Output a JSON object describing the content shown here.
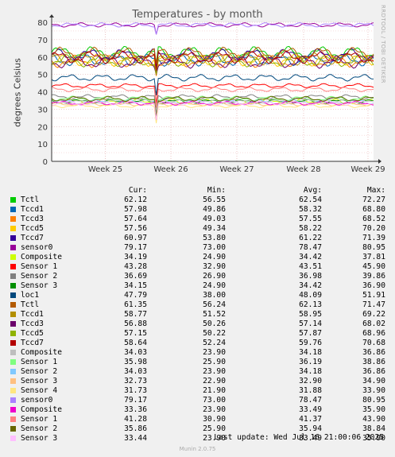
{
  "chart_data": {
    "type": "line",
    "title": "Temperatures - by month",
    "ylabel": "degrees Celsius",
    "side_text": "RRDTOOL / TOBI OETIKER",
    "ylim": [
      0,
      80
    ],
    "y_ticks": [
      0,
      10,
      20,
      30,
      40,
      50,
      60,
      70,
      80
    ],
    "x_ticks": [
      "Week 25",
      "Week 26",
      "Week 27",
      "Week 28",
      "Week 29"
    ],
    "grid": true,
    "legend_position": "bottom",
    "columns": [
      "Cur:",
      "Min:",
      "Avg:",
      "Max:"
    ],
    "series": [
      {
        "name": "Tctl",
        "color": "#00cc00",
        "cur": "62.12",
        "min": "56.55",
        "avg": "62.54",
        "max": "72.27"
      },
      {
        "name": "Tccd1",
        "color": "#0066b3",
        "cur": "57.98",
        "min": "49.86",
        "avg": "58.32",
        "max": "68.80"
      },
      {
        "name": "Tccd3",
        "color": "#ff8000",
        "cur": "57.64",
        "min": "49.03",
        "avg": "57.55",
        "max": "68.52"
      },
      {
        "name": "Tccd5",
        "color": "#ffcc00",
        "cur": "57.56",
        "min": "49.34",
        "avg": "58.22",
        "max": "70.20"
      },
      {
        "name": "Tccd7",
        "color": "#330099",
        "cur": "60.97",
        "min": "53.80",
        "avg": "61.22",
        "max": "71.39"
      },
      {
        "name": "sensor0",
        "color": "#990099",
        "cur": "79.17",
        "min": "73.00",
        "avg": "78.47",
        "max": "80.95"
      },
      {
        "name": "Composite",
        "color": "#ccff00",
        "cur": "34.19",
        "min": "24.90",
        "avg": "34.42",
        "max": "37.81"
      },
      {
        "name": "Sensor 1",
        "color": "#ff0000",
        "cur": "43.28",
        "min": "32.90",
        "avg": "43.51",
        "max": "45.90"
      },
      {
        "name": "Sensor 2",
        "color": "#808080",
        "cur": "36.69",
        "min": "26.90",
        "avg": "36.98",
        "max": "39.86"
      },
      {
        "name": "Sensor 3",
        "color": "#008f00",
        "cur": "34.15",
        "min": "24.90",
        "avg": "34.42",
        "max": "36.90"
      },
      {
        "name": "loc1",
        "color": "#00487d",
        "cur": "47.79",
        "min": "38.00",
        "avg": "48.09",
        "max": "51.91"
      },
      {
        "name": "Tctl",
        "color": "#b35a00",
        "cur": "61.35",
        "min": "56.24",
        "avg": "62.13",
        "max": "71.47"
      },
      {
        "name": "Tccd1",
        "color": "#b38f00",
        "cur": "58.77",
        "min": "51.52",
        "avg": "58.95",
        "max": "69.22"
      },
      {
        "name": "Tccd3",
        "color": "#6b006b",
        "cur": "56.88",
        "min": "50.26",
        "avg": "57.14",
        "max": "68.02"
      },
      {
        "name": "Tccd5",
        "color": "#8fb300",
        "cur": "57.15",
        "min": "50.22",
        "avg": "57.87",
        "max": "68.96"
      },
      {
        "name": "Tccd7",
        "color": "#b30000",
        "cur": "58.64",
        "min": "52.24",
        "avg": "59.76",
        "max": "70.68"
      },
      {
        "name": "Composite",
        "color": "#bebebe",
        "cur": "34.03",
        "min": "23.90",
        "avg": "34.18",
        "max": "36.86"
      },
      {
        "name": "Sensor 1",
        "color": "#80ff80",
        "cur": "35.98",
        "min": "25.90",
        "avg": "36.19",
        "max": "38.86"
      },
      {
        "name": "Sensor 2",
        "color": "#80c9ff",
        "cur": "34.03",
        "min": "23.90",
        "avg": "34.18",
        "max": "36.86"
      },
      {
        "name": "Sensor 3",
        "color": "#ffc080",
        "cur": "32.73",
        "min": "22.90",
        "avg": "32.90",
        "max": "34.90"
      },
      {
        "name": "Sensor 4",
        "color": "#ffe680",
        "cur": "31.73",
        "min": "21.90",
        "avg": "31.88",
        "max": "33.90"
      },
      {
        "name": "sensor0",
        "color": "#aa80ff",
        "cur": "79.17",
        "min": "73.00",
        "avg": "78.47",
        "max": "80.95"
      },
      {
        "name": "Composite",
        "color": "#ee00cc",
        "cur": "33.36",
        "min": "23.90",
        "avg": "33.49",
        "max": "35.90"
      },
      {
        "name": "Sensor 1",
        "color": "#ff8080",
        "cur": "41.28",
        "min": "30.90",
        "avg": "41.37",
        "max": "43.90"
      },
      {
        "name": "Sensor 2",
        "color": "#666600",
        "cur": "35.86",
        "min": "25.90",
        "avg": "35.94",
        "max": "38.84"
      },
      {
        "name": "Sensor 3",
        "color": "#ffbfff",
        "cur": "33.44",
        "min": "23.90",
        "avg": "33.49",
        "max": "35.90"
      }
    ]
  },
  "last_update": "Last update: Wed Jul 16 21:00:06 2025",
  "footer": "Munin 2.0.75"
}
